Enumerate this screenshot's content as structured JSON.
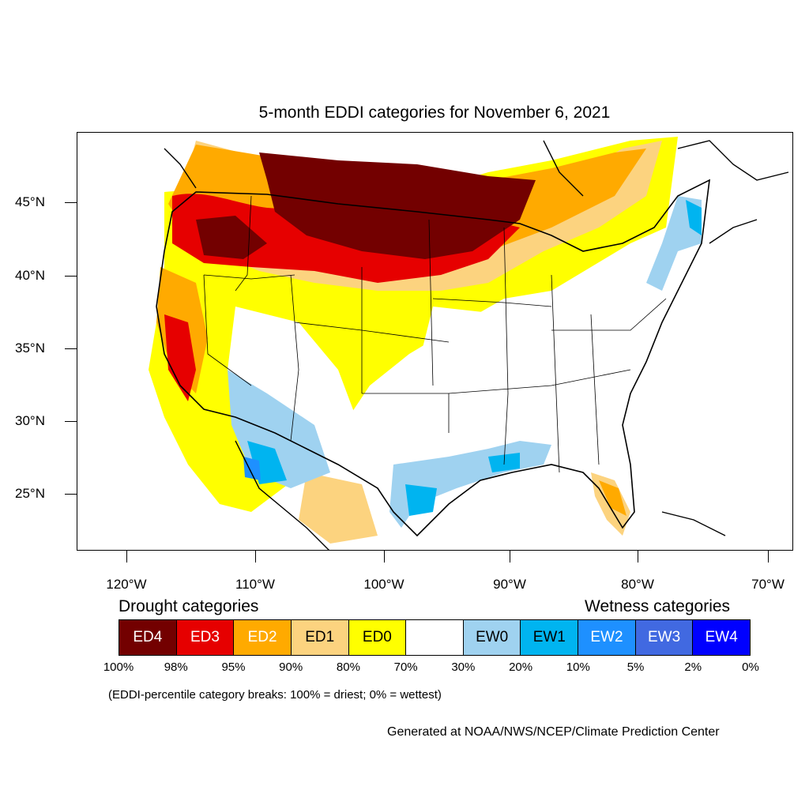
{
  "title": "5-month EDDI categories for November 6, 2021",
  "map": {
    "lat_labels": [
      "45°N",
      "40°N",
      "35°N",
      "30°N",
      "25°N"
    ],
    "lon_labels": [
      "120°W",
      "110°W",
      "100°W",
      "90°W",
      "80°W",
      "70°W"
    ]
  },
  "legend": {
    "drought_heading": "Drought categories",
    "wetness_heading": "Wetness categories",
    "categories": [
      {
        "label": "ED4",
        "color": "#730000",
        "text_color": "#ffffff"
      },
      {
        "label": "ED3",
        "color": "#e60000",
        "text_color": "#ffffff"
      },
      {
        "label": "ED2",
        "color": "#ffaa00",
        "text_color": "#ffffff"
      },
      {
        "label": "ED1",
        "color": "#fcd37f",
        "text_color": "#000000"
      },
      {
        "label": "ED0",
        "color": "#ffff00",
        "text_color": "#000000"
      },
      {
        "label": "",
        "color": "#ffffff",
        "text_color": "#000000"
      },
      {
        "label": "EW0",
        "color": "#9fd2f0",
        "text_color": "#000000"
      },
      {
        "label": "EW1",
        "color": "#00b4f0",
        "text_color": "#000000"
      },
      {
        "label": "EW2",
        "color": "#1e90ff",
        "text_color": "#ffffff"
      },
      {
        "label": "EW3",
        "color": "#4169e1",
        "text_color": "#ffffff"
      },
      {
        "label": "EW4",
        "color": "#0000ff",
        "text_color": "#ffffff"
      }
    ],
    "percent_labels": [
      "100%",
      "98%",
      "95%",
      "90%",
      "80%",
      "70%",
      "30%",
      "20%",
      "10%",
      "5%",
      "2%",
      "0%"
    ]
  },
  "note": "(EDDI-percentile category breaks: 100% = driest; 0% = wettest)",
  "credit": "Generated at NOAA/NWS/NCEP/Climate Prediction Center"
}
